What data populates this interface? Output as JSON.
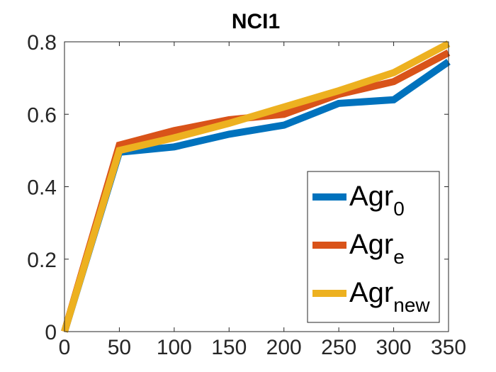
{
  "chart_data": {
    "type": "line",
    "title": "NCI1",
    "xlabel": "",
    "ylabel": "",
    "x": [
      0,
      50,
      100,
      150,
      200,
      250,
      300,
      350
    ],
    "xlim": [
      0,
      350
    ],
    "ylim": [
      0,
      0.8
    ],
    "xticks": [
      0,
      50,
      100,
      150,
      200,
      250,
      300,
      350
    ],
    "xtick_labels": [
      "0",
      "50",
      "100",
      "150",
      "200",
      "250",
      "300",
      "350"
    ],
    "yticks": [
      0,
      0.2,
      0.4,
      0.6,
      0.8
    ],
    "ytick_labels": [
      "0",
      "0.2",
      "0.4",
      "0.6",
      "0.8"
    ],
    "grid": false,
    "legend_position": "bottom-right",
    "series": [
      {
        "name": "Agr_0",
        "label_main": "Agr",
        "label_sub": "0",
        "color": "#0072BD",
        "values": [
          0.0,
          0.495,
          0.51,
          0.545,
          0.57,
          0.63,
          0.64,
          0.745
        ]
      },
      {
        "name": "Agr_e",
        "label_main": "Agr",
        "label_sub": "e",
        "color": "#D95319",
        "values": [
          0.0,
          0.515,
          0.555,
          0.585,
          0.6,
          0.655,
          0.69,
          0.77
        ]
      },
      {
        "name": "Agr_new",
        "label_main": "Agr",
        "label_sub": "new",
        "color": "#EDB120",
        "values": [
          0.0,
          0.5,
          0.535,
          0.575,
          0.62,
          0.665,
          0.715,
          0.795
        ]
      }
    ]
  }
}
